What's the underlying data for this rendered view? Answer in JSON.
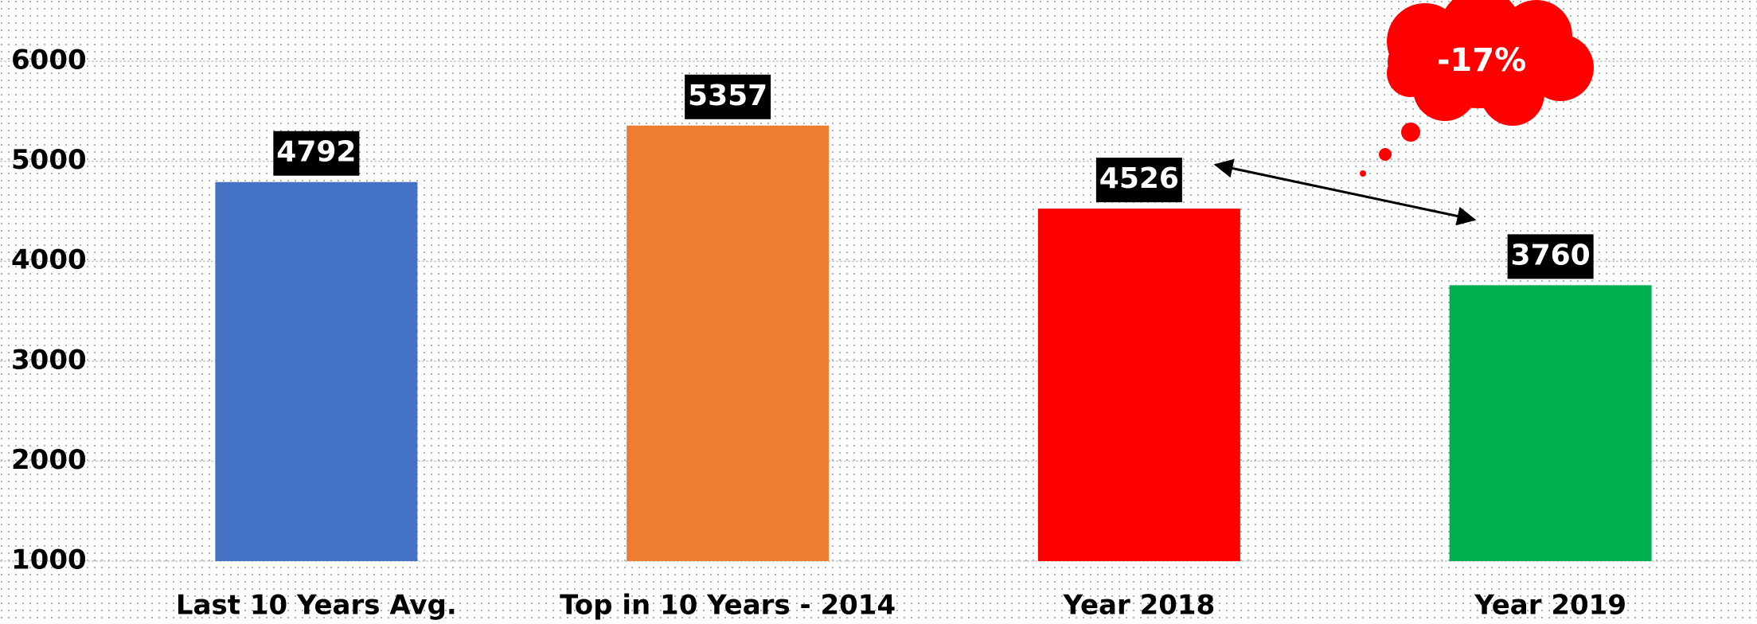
{
  "chart_data": {
    "type": "bar",
    "categories": [
      "Last 10 Years Avg.",
      "Top in 10 Years - 2014",
      "Year 2018",
      "Year 2019"
    ],
    "values": [
      4792,
      5357,
      4526,
      3760
    ],
    "colors": [
      "#4472c4",
      "#ed7d31",
      "#ff0000",
      "#00b050"
    ],
    "ylim": [
      1000,
      6000
    ],
    "yticks": [
      1000,
      2000,
      3000,
      4000,
      5000,
      6000
    ],
    "grid": true,
    "annotation": "-17%"
  }
}
